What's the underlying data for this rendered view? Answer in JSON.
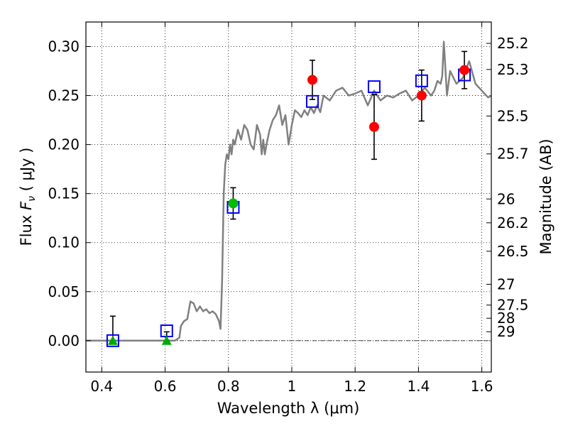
{
  "chart_data": {
    "type": "line",
    "xlabel": "Wavelength  λ (μm)",
    "ylabel": "Flux  Fν  ( μJy )",
    "y2label": "Magnitude (AB)",
    "xlim": [
      0.35,
      1.63
    ],
    "ylim": [
      -0.032,
      0.325
    ],
    "grid": true,
    "x_ticks": [
      {
        "value": 0.4,
        "label": "0.4"
      },
      {
        "value": 0.6,
        "label": "0.6"
      },
      {
        "value": 0.8,
        "label": "0.8"
      },
      {
        "value": 1.0,
        "label": "1"
      },
      {
        "value": 1.2,
        "label": "1.2"
      },
      {
        "value": 1.4,
        "label": "1.4"
      },
      {
        "value": 1.6,
        "label": "1.6"
      }
    ],
    "y_ticks": [
      {
        "value": 0.0,
        "label": "0.00"
      },
      {
        "value": 0.05,
        "label": "0.05"
      },
      {
        "value": 0.1,
        "label": "0.10"
      },
      {
        "value": 0.15,
        "label": "0.15"
      },
      {
        "value": 0.2,
        "label": "0.20"
      },
      {
        "value": 0.25,
        "label": "0.25"
      },
      {
        "value": 0.3,
        "label": "0.30"
      }
    ],
    "y2_ticks": [
      {
        "flux": 0.3032,
        "label": "25.2"
      },
      {
        "flux": 0.2766,
        "label": "25.3"
      },
      {
        "flux": 0.2291,
        "label": "25.5"
      },
      {
        "flux": 0.1905,
        "label": "25.7"
      },
      {
        "flux": 0.1445,
        "label": "26"
      },
      {
        "flux": 0.1202,
        "label": "26.2"
      },
      {
        "flux": 0.0912,
        "label": "26.5"
      },
      {
        "flux": 0.0575,
        "label": "27"
      },
      {
        "flux": 0.0363,
        "label": "27.5"
      },
      {
        "flux": 0.0229,
        "label": "28"
      },
      {
        "flux": 0.0091,
        "label": "29"
      }
    ],
    "zero_line": 0.0,
    "series": [
      {
        "style": "template_spectrum",
        "color": "#808080",
        "x": [
          0.35,
          0.4,
          0.45,
          0.5,
          0.55,
          0.6,
          0.63,
          0.645,
          0.65,
          0.66,
          0.67,
          0.68,
          0.69,
          0.7,
          0.71,
          0.72,
          0.73,
          0.74,
          0.75,
          0.76,
          0.77,
          0.775,
          0.78,
          0.785,
          0.79,
          0.795,
          0.8,
          0.805,
          0.81,
          0.815,
          0.82,
          0.83,
          0.84,
          0.85,
          0.86,
          0.87,
          0.88,
          0.89,
          0.9,
          0.905,
          0.91,
          0.915,
          0.92,
          0.93,
          0.94,
          0.95,
          0.96,
          0.97,
          0.98,
          0.99,
          1.0,
          1.01,
          1.02,
          1.03,
          1.04,
          1.05,
          1.06,
          1.07,
          1.08,
          1.09,
          1.1,
          1.12,
          1.14,
          1.16,
          1.18,
          1.2,
          1.22,
          1.24,
          1.26,
          1.28,
          1.3,
          1.32,
          1.34,
          1.36,
          1.38,
          1.4,
          1.42,
          1.44,
          1.45,
          1.46,
          1.47,
          1.475,
          1.48,
          1.49,
          1.5,
          1.52,
          1.54,
          1.56,
          1.58,
          1.6,
          1.62,
          1.63
        ],
        "y": [
          0.0,
          0.0,
          0.0,
          0.0,
          0.0,
          0.0,
          0.0,
          0.003,
          0.015,
          0.02,
          0.022,
          0.04,
          0.038,
          0.03,
          0.035,
          0.03,
          0.032,
          0.028,
          0.03,
          0.027,
          0.02,
          0.012,
          0.06,
          0.15,
          0.18,
          0.19,
          0.185,
          0.2,
          0.19,
          0.205,
          0.2,
          0.215,
          0.205,
          0.22,
          0.215,
          0.2,
          0.195,
          0.22,
          0.21,
          0.19,
          0.205,
          0.19,
          0.2,
          0.215,
          0.225,
          0.23,
          0.24,
          0.22,
          0.23,
          0.2,
          0.22,
          0.235,
          0.232,
          0.228,
          0.235,
          0.23,
          0.238,
          0.232,
          0.24,
          0.233,
          0.25,
          0.245,
          0.255,
          0.258,
          0.25,
          0.252,
          0.255,
          0.24,
          0.255,
          0.245,
          0.25,
          0.248,
          0.252,
          0.255,
          0.245,
          0.25,
          0.258,
          0.25,
          0.255,
          0.265,
          0.262,
          0.27,
          0.305,
          0.25,
          0.275,
          0.262,
          0.268,
          0.285,
          0.262,
          0.255,
          0.248,
          0.25
        ]
      },
      {
        "style": "model_boxes",
        "color": "#0000ff",
        "x": [
          0.435,
          0.605,
          0.815,
          1.065,
          1.26,
          1.41,
          1.545
        ],
        "y": [
          0.0,
          0.01,
          0.136,
          0.244,
          0.259,
          0.265,
          0.271
        ]
      },
      {
        "style": "red_circles",
        "color": "#ff0000",
        "x": [
          1.065,
          1.26,
          1.41,
          1.545
        ],
        "y": [
          0.266,
          0.218,
          0.25,
          0.276
        ],
        "err": [
          0.02,
          0.033,
          0.026,
          0.019
        ]
      },
      {
        "style": "green_circles",
        "color": "#00bb00",
        "x": [
          0.815
        ],
        "y": [
          0.14
        ],
        "err": [
          0.016
        ]
      },
      {
        "style": "green_triangles",
        "color": "#00aa00",
        "x": [
          0.435,
          0.605
        ],
        "y": [
          0.0,
          0.0
        ],
        "err_up": [
          0.025,
          0.009
        ],
        "err_down": [
          0.0,
          0.0
        ]
      }
    ]
  }
}
